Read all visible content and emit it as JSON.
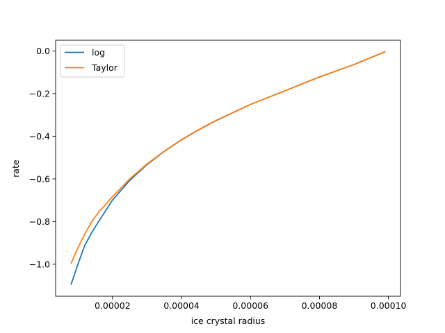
{
  "chart_data": {
    "type": "line",
    "title": "",
    "xlabel": "ice crystal radius",
    "ylabel": "rate",
    "xlim": [
      3.5e-06,
      0.0001035
    ],
    "ylim": [
      -1.15,
      0.05
    ],
    "x_ticks": [
      2e-05,
      4e-05,
      6e-05,
      8e-05,
      0.0001
    ],
    "x_tick_labels": [
      "0.00002",
      "0.00004",
      "0.00006",
      "0.00008",
      "0.00010"
    ],
    "y_ticks": [
      0.0,
      -0.2,
      -0.4,
      -0.6,
      -0.8,
      -1.0
    ],
    "y_tick_labels": [
      "0.0",
      "−0.2",
      "−0.4",
      "−0.6",
      "−0.8",
      "−1.0"
    ],
    "grid": false,
    "legend_position": "upper-left",
    "series": [
      {
        "name": "log",
        "color": "#1f77b4",
        "x": [
          8e-06,
          1e-05,
          1.2e-05,
          1.4e-05,
          1.6e-05,
          1.8e-05,
          2e-05,
          2.5e-05,
          3e-05,
          3.5e-05,
          4e-05,
          4.5e-05,
          5e-05,
          6e-05,
          7e-05,
          8e-05,
          9e-05,
          9.9e-05
        ],
        "y": [
          -1.094,
          -0.998,
          -0.91,
          -0.851,
          -0.799,
          -0.749,
          -0.699,
          -0.607,
          -0.533,
          -0.471,
          -0.417,
          -0.37,
          -0.327,
          -0.251,
          -0.187,
          -0.122,
          -0.064,
          -0.004
        ]
      },
      {
        "name": "Taylor",
        "color": "#ff7f0e",
        "x": [
          8e-06,
          1e-05,
          1.2e-05,
          1.4e-05,
          1.6e-05,
          1.8e-05,
          2e-05,
          2.5e-05,
          3e-05,
          3.5e-05,
          4e-05,
          4.5e-05,
          5e-05,
          6e-05,
          7e-05,
          8e-05,
          9e-05,
          9.9e-05
        ],
        "y": [
          -0.995,
          -0.922,
          -0.857,
          -0.8,
          -0.755,
          -0.72,
          -0.683,
          -0.6,
          -0.53,
          -0.47,
          -0.416,
          -0.369,
          -0.326,
          -0.251,
          -0.187,
          -0.122,
          -0.064,
          -0.004
        ]
      }
    ]
  }
}
